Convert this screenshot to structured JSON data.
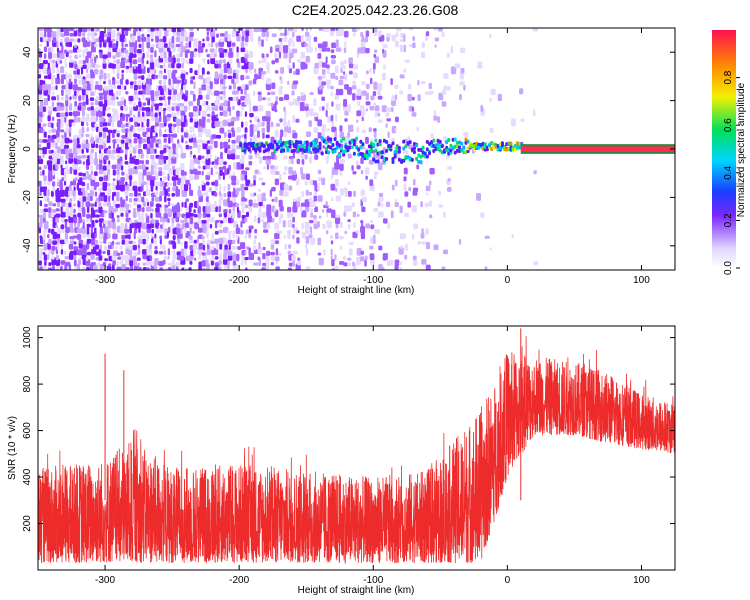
{
  "title": "C2E4.2025.042.23.26.G08",
  "colors": {
    "snr_line": "#ee2b2b",
    "low_amp": "#d9c8ff",
    "mid_amp": "#7a28ff",
    "high_amp": "#ff2d55"
  },
  "chart_data": [
    {
      "type": "heatmap",
      "xlabel": "Height of straight line (km)",
      "ylabel": "Frequency (Hz)",
      "xlim": [
        -350,
        125
      ],
      "ylim": [
        -50,
        50
      ],
      "x_ticks": [
        -300,
        -200,
        -100,
        0,
        100
      ],
      "y_ticks": [
        -40,
        -20,
        0,
        20,
        40
      ],
      "colorbar": {
        "label": "Normalized spectral amplitude",
        "range": [
          0.0,
          1.0
        ],
        "ticks": [
          "0.0",
          "0.2",
          "0.4",
          "0.6",
          "0.8"
        ],
        "tick_values": [
          0.0,
          0.2,
          0.4,
          0.6,
          0.8
        ]
      },
      "signal": [
        {
          "x_from": -200,
          "x_to": -60,
          "freq_center": 1,
          "amplitude": 0.3
        },
        {
          "x_from": -60,
          "x_to": 10,
          "freq_center": 1,
          "amplitude": 0.5
        },
        {
          "x_from": 10,
          "x_to": 125,
          "freq_center": 0,
          "amplitude": 0.95
        }
      ]
    },
    {
      "type": "line",
      "xlabel": "Height of straight line (km)",
      "ylabel": "SNR (10 * v/v)",
      "xlim": [
        -350,
        125
      ],
      "ylim": [
        0,
        1050
      ],
      "x_ticks": [
        -300,
        -200,
        -100,
        0,
        100
      ],
      "y_ticks": [
        200,
        400,
        600,
        800,
        1000
      ],
      "envelope": {
        "x": [
          -350,
          -320,
          -300,
          -280,
          -250,
          -200,
          -150,
          -100,
          -60,
          -40,
          -20,
          -10,
          0,
          20,
          50,
          80,
          100,
          125
        ],
        "low": [
          30,
          30,
          30,
          30,
          30,
          30,
          30,
          30,
          30,
          30,
          30,
          200,
          400,
          580,
          580,
          540,
          520,
          500
        ],
        "high": [
          440,
          460,
          480,
          560,
          440,
          460,
          430,
          400,
          430,
          560,
          700,
          800,
          950,
          920,
          900,
          840,
          760,
          720
        ]
      },
      "peaks": [
        {
          "x": -300,
          "y": 930
        },
        {
          "x": -286,
          "y": 860
        },
        {
          "x": 10,
          "y": 1040
        }
      ]
    }
  ]
}
